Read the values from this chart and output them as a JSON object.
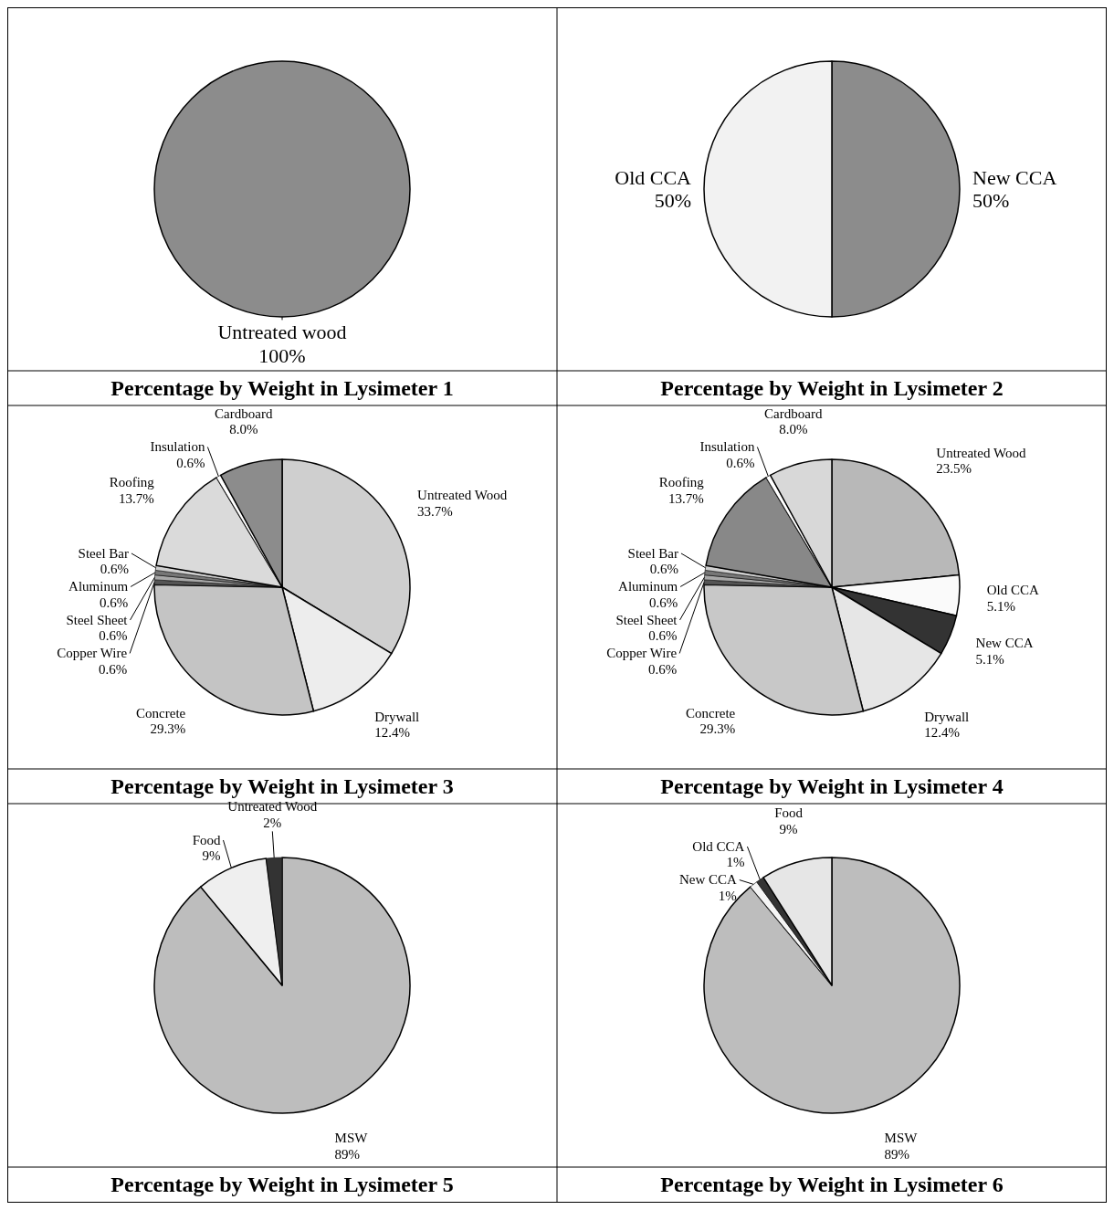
{
  "chart_data": [
    {
      "type": "pie",
      "title": "Percentage by Weight in Lysimeter 1",
      "categories": [
        "Untreated wood"
      ],
      "values": [
        100
      ],
      "colors": [
        "#8c8c8c"
      ],
      "value_labels": [
        "100%"
      ]
    },
    {
      "type": "pie",
      "title": "Percentage by Weight in Lysimeter 2",
      "categories": [
        "New CCA",
        "Old CCA"
      ],
      "values": [
        50,
        50
      ],
      "colors": [
        "#8c8c8c",
        "#f2f2f2"
      ],
      "value_labels": [
        "50%",
        "50%"
      ]
    },
    {
      "type": "pie",
      "title": "Percentage by Weight in Lysimeter 3",
      "categories": [
        "Untreated Wood",
        "Drywall",
        "Concrete",
        "Copper Wire",
        "Steel Sheet",
        "Aluminum",
        "Steel Bar",
        "Roofing",
        "Insulation",
        "Cardboard"
      ],
      "values": [
        33.7,
        12.4,
        29.3,
        0.6,
        0.6,
        0.6,
        0.6,
        13.7,
        0.6,
        8.0
      ],
      "colors": [
        "#cfcfcf",
        "#ededed",
        "#c4c4c4",
        "#555555",
        "#a8a8a8",
        "#777777",
        "#d0d0d0",
        "#dadada",
        "#ffffff",
        "#8c8c8c"
      ],
      "value_labels": [
        "33.7%",
        "12.4%",
        "29.3%",
        "0.6%",
        "0.6%",
        "0.6%",
        "0.6%",
        "13.7%",
        "0.6%",
        "8.0%"
      ]
    },
    {
      "type": "pie",
      "title": "Percentage by Weight in Lysimeter 4",
      "categories": [
        "Untreated Wood",
        "Old CCA",
        "New CCA",
        "Drywall",
        "Concrete",
        "Copper Wire",
        "Steel Sheet",
        "Aluminum",
        "Steel Bar",
        "Roofing",
        "Insulation",
        "Cardboard"
      ],
      "values": [
        23.5,
        5.1,
        5.1,
        12.4,
        29.3,
        0.6,
        0.6,
        0.6,
        0.6,
        13.7,
        0.6,
        8.0
      ],
      "colors": [
        "#b8b8b8",
        "#fafafa",
        "#333333",
        "#e6e6e6",
        "#c8c8c8",
        "#555555",
        "#a8a8a8",
        "#777777",
        "#d0d0d0",
        "#888888",
        "#ffffff",
        "#d8d8d8"
      ],
      "value_labels": [
        "23.5%",
        "5.1%",
        "5.1%",
        "12.4%",
        "29.3%",
        "0.6%",
        "0.6%",
        "0.6%",
        "0.6%",
        "13.7%",
        "0.6%",
        "8.0%"
      ]
    },
    {
      "type": "pie",
      "title": "Percentage by Weight in Lysimeter 5",
      "categories": [
        "MSW",
        "Food",
        "Untreated Wood"
      ],
      "values": [
        89,
        9,
        2
      ],
      "colors": [
        "#bdbdbd",
        "#efefef",
        "#333333"
      ],
      "value_labels": [
        "89%",
        "9%",
        "2%"
      ]
    },
    {
      "type": "pie",
      "title": "Percentage by Weight in Lysimeter 6",
      "categories": [
        "MSW",
        "New CCA",
        "Old CCA",
        "Food"
      ],
      "values": [
        89,
        1,
        1,
        9
      ],
      "colors": [
        "#bdbdbd",
        "#f5f5f5",
        "#333333",
        "#e6e6e6"
      ],
      "value_labels": [
        "89%",
        "1%",
        "1%",
        "9%"
      ]
    }
  ]
}
